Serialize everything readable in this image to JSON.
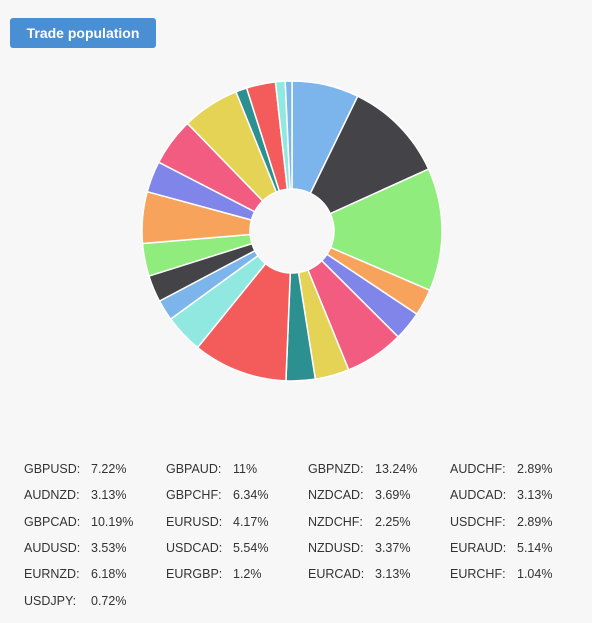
{
  "header": {
    "title": "Trade population"
  },
  "chart_data": {
    "type": "pie",
    "style": "donut",
    "series": [
      {
        "name": "GBPUSD",
        "value": 7.22,
        "color": "#7cb5ec"
      },
      {
        "name": "GBPAUD",
        "value": 11,
        "color": "#434348"
      },
      {
        "name": "GBPNZD",
        "value": 13.24,
        "color": "#90ed7d"
      },
      {
        "name": "AUDCHF",
        "value": 2.89,
        "color": "#f7a35c"
      },
      {
        "name": "AUDNZD",
        "value": 3.13,
        "color": "#8085e9"
      },
      {
        "name": "GBPCHF",
        "value": 6.34,
        "color": "#f15c80"
      },
      {
        "name": "NZDCAD",
        "value": 3.69,
        "color": "#e4d354"
      },
      {
        "name": "AUDCAD",
        "value": 3.13,
        "color": "#2b908f"
      },
      {
        "name": "GBPCAD",
        "value": 10.19,
        "color": "#f45b5b"
      },
      {
        "name": "EURUSD",
        "value": 4.17,
        "color": "#91e8e1"
      },
      {
        "name": "NZDCHF",
        "value": 2.25,
        "color": "#7cb5ec"
      },
      {
        "name": "USDCHF",
        "value": 2.89,
        "color": "#434348"
      },
      {
        "name": "AUDUSD",
        "value": 3.53,
        "color": "#90ed7d"
      },
      {
        "name": "USDCAD",
        "value": 5.54,
        "color": "#f7a35c"
      },
      {
        "name": "NZDUSD",
        "value": 3.37,
        "color": "#8085e9"
      },
      {
        "name": "EURAUD",
        "value": 5.14,
        "color": "#f15c80"
      },
      {
        "name": "EURNZD",
        "value": 6.18,
        "color": "#e4d354"
      },
      {
        "name": "EURGBP",
        "value": 1.2,
        "color": "#2b908f"
      },
      {
        "name": "EURCAD",
        "value": 3.13,
        "color": "#f45b5b"
      },
      {
        "name": "EURCHF",
        "value": 1.04,
        "color": "#91e8e1"
      },
      {
        "name": "USDJPY",
        "value": 0.72,
        "color": "#7cb5ec"
      }
    ]
  },
  "legend": [
    {
      "name": "GBPUSD:",
      "value": "7.22%"
    },
    {
      "name": "GBPAUD:",
      "value": "11%"
    },
    {
      "name": "GBPNZD:",
      "value": "13.24%"
    },
    {
      "name": "AUDCHF:",
      "value": "2.89%"
    },
    {
      "name": "AUDNZD:",
      "value": "3.13%"
    },
    {
      "name": "GBPCHF:",
      "value": "6.34%"
    },
    {
      "name": "NZDCAD:",
      "value": "3.69%"
    },
    {
      "name": "AUDCAD:",
      "value": "3.13%"
    },
    {
      "name": "GBPCAD:",
      "value": "10.19%"
    },
    {
      "name": "EURUSD:",
      "value": "4.17%"
    },
    {
      "name": "NZDCHF:",
      "value": "2.25%"
    },
    {
      "name": "USDCHF:",
      "value": "2.89%"
    },
    {
      "name": "AUDUSD:",
      "value": "3.53%"
    },
    {
      "name": "USDCAD:",
      "value": "5.54%"
    },
    {
      "name": "NZDUSD:",
      "value": "3.37%"
    },
    {
      "name": "EURAUD:",
      "value": "5.14%"
    },
    {
      "name": "EURNZD:",
      "value": "6.18%"
    },
    {
      "name": "EURGBP:",
      "value": "1.2%"
    },
    {
      "name": "EURCAD:",
      "value": "3.13%"
    },
    {
      "name": "EURCHF:",
      "value": "1.04%"
    },
    {
      "name": "USDJPY:",
      "value": "0.72%"
    }
  ]
}
